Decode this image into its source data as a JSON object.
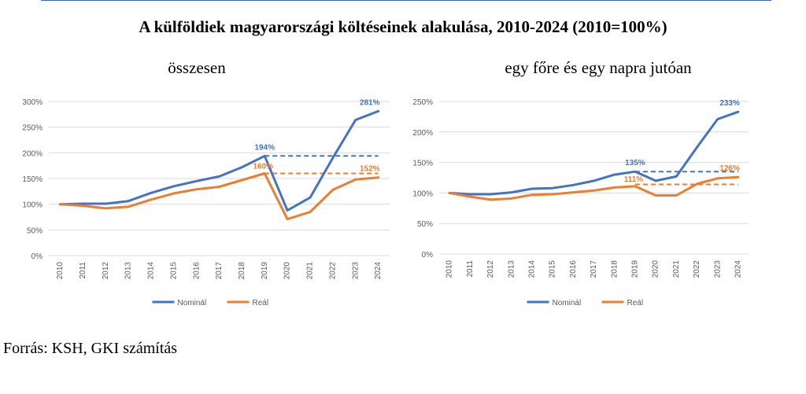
{
  "page": {
    "title": "A külföldiek magyarországi költéseinek alakulása, 2010-2024 (2010=100%)",
    "source": "Forrás: KSH, GKI számítás"
  },
  "colors": {
    "nominal": "#4472C4",
    "real": "#ED7D31",
    "grid": "#d9d9d9",
    "axis_text": "#595959",
    "topline": "#3b5fd6"
  },
  "chart_data": [
    {
      "type": "line",
      "subtitle": "összesen",
      "x": [
        "2010",
        "2011",
        "2012",
        "2013",
        "2014",
        "2015",
        "2016",
        "2017",
        "2018",
        "2019",
        "2020",
        "2021",
        "2022",
        "2023",
        "2024"
      ],
      "y_ticks": [
        "0%",
        "50%",
        "100%",
        "150%",
        "200%",
        "250%",
        "300%"
      ],
      "ylim": [
        0,
        300
      ],
      "grid": true,
      "legend_position": "bottom",
      "series": [
        {
          "name": "Nominál",
          "color": "#4472C4",
          "values": [
            100,
            101,
            101,
            106,
            122,
            135,
            145,
            154,
            172,
            194,
            88,
            113,
            190,
            264,
            281
          ]
        },
        {
          "name": "Reál",
          "color": "#ED7D31",
          "values": [
            100,
            97,
            92,
            95,
            109,
            121,
            129,
            134,
            147,
            160,
            71,
            85,
            128,
            148,
            152
          ]
        }
      ],
      "reference_lines": [
        {
          "series": "Nominál",
          "value": 194,
          "from": "2019",
          "to": "2024",
          "style": "dashed"
        },
        {
          "series": "Reál",
          "value": 160,
          "from": "2019",
          "to": "2024",
          "style": "dashed"
        }
      ],
      "data_labels": [
        {
          "series": "Nominál",
          "x": "2019",
          "text": "194%"
        },
        {
          "series": "Nominál",
          "x": "2024",
          "text": "281%"
        },
        {
          "series": "Reál",
          "x": "2019",
          "text": "160%"
        },
        {
          "series": "Reál",
          "x": "2024",
          "text": "152%"
        }
      ]
    },
    {
      "type": "line",
      "subtitle": "egy főre és egy napra jutóan",
      "x": [
        "2010",
        "2011",
        "2012",
        "2013",
        "2014",
        "2015",
        "2016",
        "2017",
        "2018",
        "2019",
        "2020",
        "2021",
        "2022",
        "2023",
        "2024"
      ],
      "y_ticks": [
        "0%",
        "50%",
        "100%",
        "150%",
        "200%",
        "250%"
      ],
      "ylim": [
        0,
        250
      ],
      "grid": true,
      "legend_position": "bottom",
      "series": [
        {
          "name": "Nominál",
          "color": "#4472C4",
          "values": [
            100,
            98,
            98,
            101,
            107,
            108,
            113,
            120,
            130,
            135,
            120,
            127,
            175,
            221,
            233
          ]
        },
        {
          "name": "Reál",
          "color": "#ED7D31",
          "values": [
            100,
            94,
            89,
            91,
            97,
            98,
            101,
            104,
            109,
            111,
            96,
            96,
            115,
            124,
            126
          ]
        }
      ],
      "reference_lines": [
        {
          "series": "Nominál",
          "value": 135,
          "from": "2019",
          "to": "2024",
          "style": "dashed"
        },
        {
          "series": "Reál",
          "value": 114,
          "from": "2019",
          "to": "2024",
          "style": "dashed"
        }
      ],
      "data_labels": [
        {
          "series": "Nominál",
          "x": "2019",
          "text": "135%"
        },
        {
          "series": "Nominál",
          "x": "2024",
          "text": "233%"
        },
        {
          "series": "Reál",
          "x": "2019",
          "text": "111%"
        },
        {
          "series": "Reál",
          "x": "2024",
          "text": "126%"
        }
      ]
    }
  ]
}
